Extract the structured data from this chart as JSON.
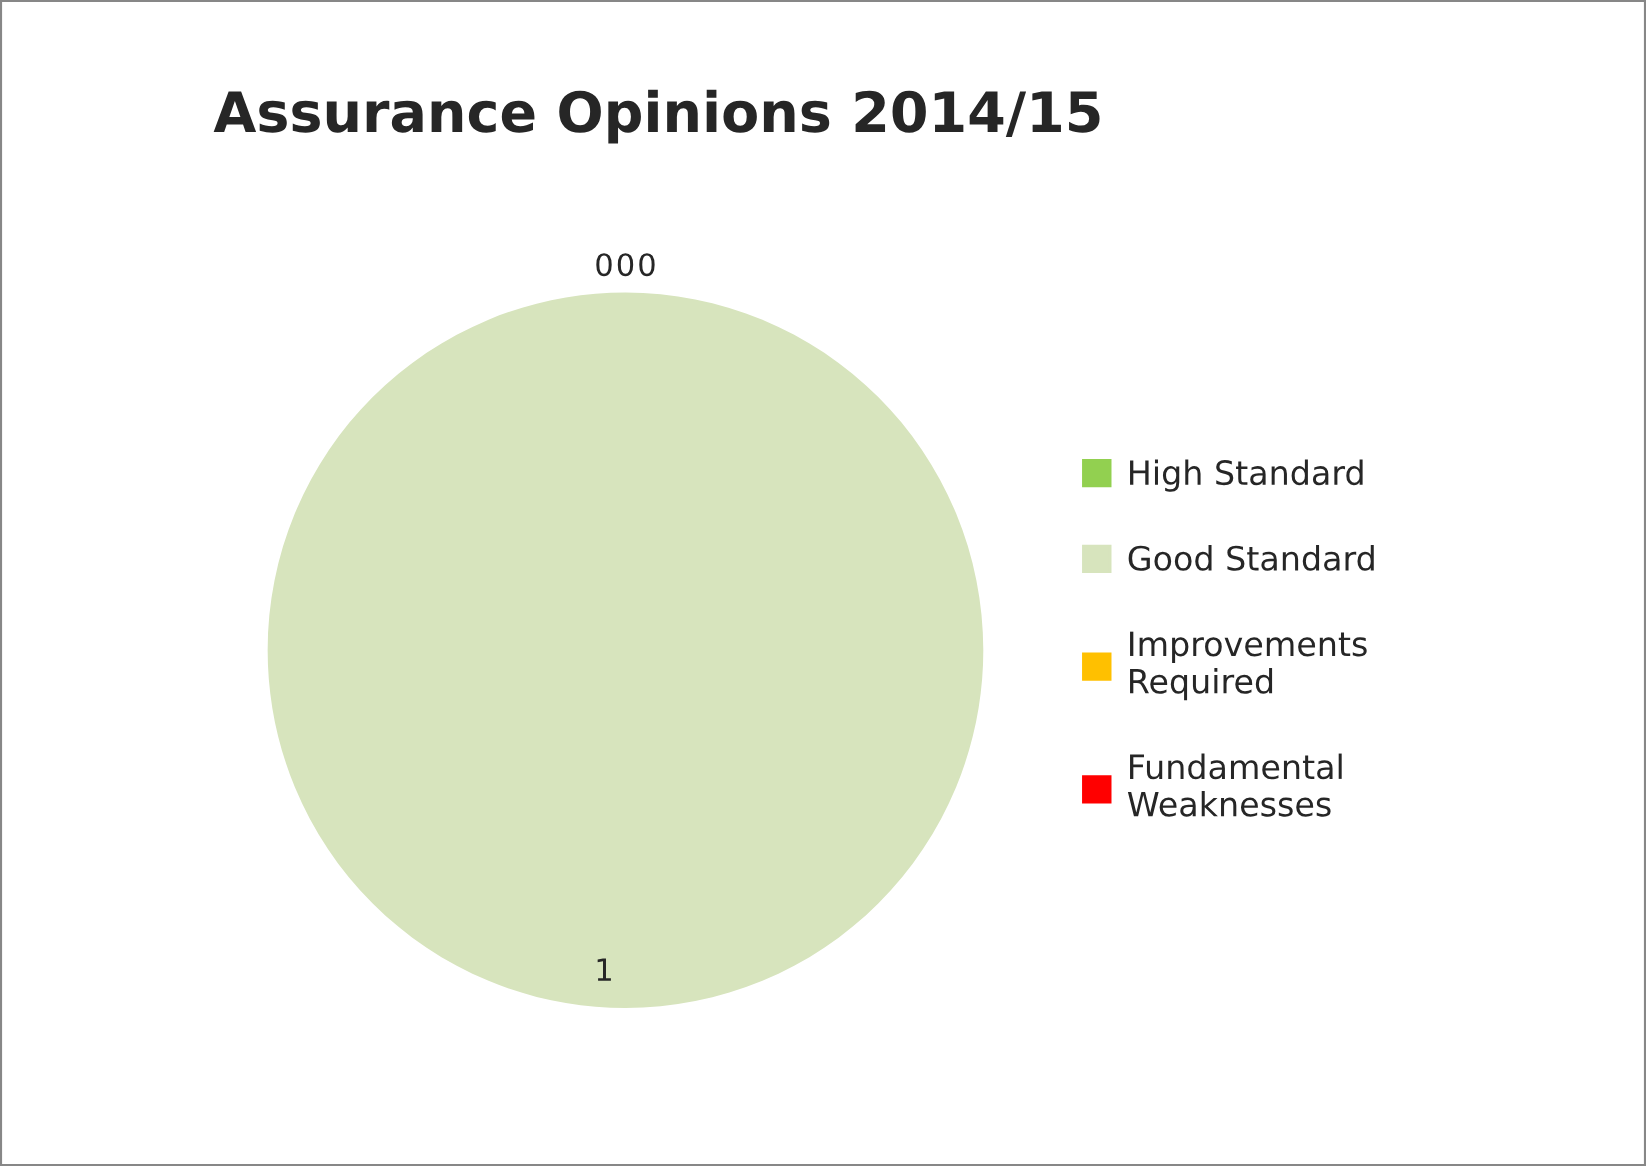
{
  "chart_data": {
    "type": "pie",
    "title": "Assurance Opinions 2014/15",
    "categories": [
      "High Standard",
      "Good Standard",
      "Improvements Required",
      "Fundamental Weaknesses"
    ],
    "values": [
      0,
      1,
      0,
      0
    ],
    "colors": [
      "#92d050",
      "#d7e4bd",
      "#ffc000",
      "#ff0000"
    ],
    "value_labels": [
      "0",
      "1",
      "0",
      "0"
    ],
    "legend": "right"
  }
}
